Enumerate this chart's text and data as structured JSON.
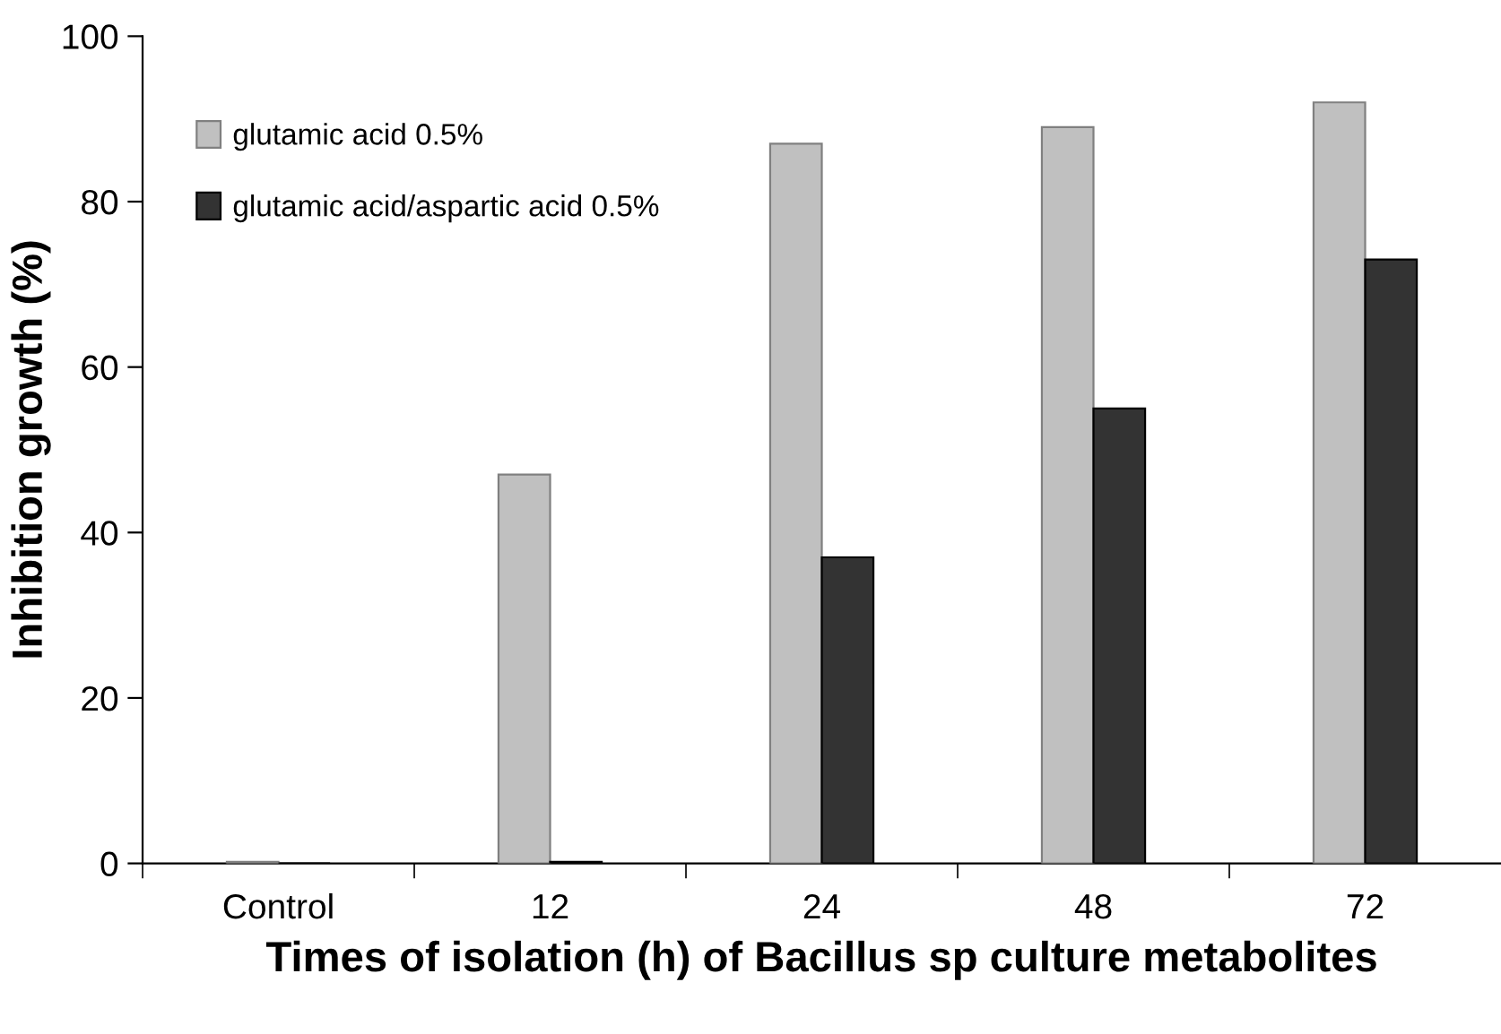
{
  "chart_data": {
    "type": "bar",
    "xlabel": "Times of isolation (h) of Bacillus sp culture metabolites",
    "ylabel": "Inhibition growth (%)",
    "categories": [
      "Control",
      "12",
      "24",
      "48",
      "72"
    ],
    "series": [
      {
        "name": "glutamic acid 0.5%",
        "color": "#c0c0c0",
        "values": [
          0.2,
          47,
          87,
          89,
          92
        ]
      },
      {
        "name": "glutamic acid/aspartic acid 0.5%",
        "color": "#333333",
        "values": [
          0,
          0.2,
          37,
          55,
          73
        ]
      }
    ],
    "ylim": [
      0,
      100
    ],
    "yticks": [
      0,
      20,
      40,
      60,
      80,
      100
    ],
    "grid": false,
    "legend": "top left"
  }
}
